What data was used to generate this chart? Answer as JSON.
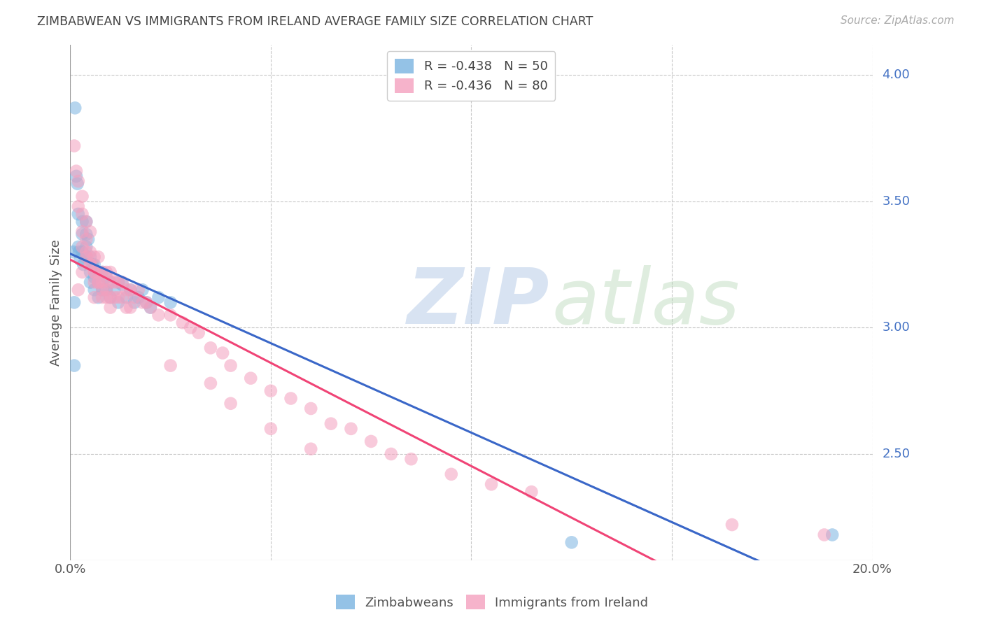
{
  "title": "ZIMBABWEAN VS IMMIGRANTS FROM IRELAND AVERAGE FAMILY SIZE CORRELATION CHART",
  "source": "Source: ZipAtlas.com",
  "ylabel": "Average Family Size",
  "yticks_right": [
    4.0,
    3.5,
    3.0,
    2.5
  ],
  "ytick_color": "#4472c4",
  "legend_top": [
    {
      "label": "R = -0.438   N = 50",
      "color": "#7aabdb"
    },
    {
      "label": "R = -0.436   N = 80",
      "color": "#ff99bb"
    }
  ],
  "legend_labels": [
    "Zimbabweans",
    "Immigrants from Ireland"
  ],
  "series1_color": "#7ab3e0",
  "series2_color": "#f4a0be",
  "line1_color": "#3a67c8",
  "line2_color": "#f04476",
  "background_color": "#ffffff",
  "grid_color": "#c8c8c8",
  "title_color": "#444444",
  "source_color": "#aaaaaa",
  "xmin": 0.0,
  "xmax": 0.2,
  "ymin": 2.08,
  "ymax": 4.12,
  "zim_x": [
    0.0008,
    0.0012,
    0.0015,
    0.0018,
    0.002,
    0.002,
    0.0022,
    0.0025,
    0.003,
    0.003,
    0.003,
    0.0033,
    0.004,
    0.004,
    0.004,
    0.004,
    0.0045,
    0.005,
    0.005,
    0.005,
    0.0055,
    0.006,
    0.006,
    0.006,
    0.007,
    0.007,
    0.007,
    0.008,
    0.008,
    0.009,
    0.009,
    0.01,
    0.01,
    0.011,
    0.012,
    0.012,
    0.013,
    0.014,
    0.015,
    0.016,
    0.017,
    0.018,
    0.019,
    0.02,
    0.022,
    0.025,
    0.001,
    0.001,
    0.125,
    0.19
  ],
  "zim_y": [
    3.3,
    3.87,
    3.6,
    3.57,
    3.32,
    3.45,
    3.3,
    3.27,
    3.42,
    3.37,
    3.3,
    3.25,
    3.42,
    3.37,
    3.32,
    3.28,
    3.35,
    3.28,
    3.22,
    3.18,
    3.25,
    3.25,
    3.2,
    3.15,
    3.22,
    3.18,
    3.12,
    3.22,
    3.15,
    3.2,
    3.15,
    3.18,
    3.12,
    3.15,
    3.18,
    3.1,
    3.17,
    3.12,
    3.15,
    3.1,
    3.12,
    3.15,
    3.1,
    3.08,
    3.12,
    3.1,
    3.1,
    2.85,
    2.15,
    2.18
  ],
  "ire_x": [
    0.001,
    0.0015,
    0.002,
    0.002,
    0.003,
    0.003,
    0.003,
    0.004,
    0.004,
    0.004,
    0.005,
    0.005,
    0.005,
    0.006,
    0.006,
    0.006,
    0.006,
    0.007,
    0.007,
    0.007,
    0.008,
    0.008,
    0.008,
    0.009,
    0.009,
    0.01,
    0.01,
    0.01,
    0.011,
    0.011,
    0.012,
    0.012,
    0.013,
    0.013,
    0.014,
    0.014,
    0.015,
    0.015,
    0.016,
    0.017,
    0.018,
    0.019,
    0.02,
    0.022,
    0.025,
    0.028,
    0.03,
    0.032,
    0.035,
    0.038,
    0.04,
    0.045,
    0.05,
    0.055,
    0.06,
    0.065,
    0.07,
    0.075,
    0.08,
    0.085,
    0.003,
    0.004,
    0.005,
    0.006,
    0.007,
    0.008,
    0.009,
    0.01,
    0.002,
    0.003,
    0.095,
    0.105,
    0.115,
    0.035,
    0.04,
    0.05,
    0.06,
    0.025,
    0.165,
    0.188
  ],
  "ire_y": [
    3.72,
    3.62,
    3.58,
    3.48,
    3.52,
    3.45,
    3.38,
    3.42,
    3.35,
    3.3,
    3.38,
    3.3,
    3.25,
    3.28,
    3.22,
    3.18,
    3.12,
    3.28,
    3.22,
    3.18,
    3.22,
    3.18,
    3.12,
    3.22,
    3.15,
    3.22,
    3.18,
    3.12,
    3.18,
    3.12,
    3.18,
    3.12,
    3.18,
    3.12,
    3.15,
    3.08,
    3.15,
    3.08,
    3.12,
    3.15,
    3.1,
    3.1,
    3.08,
    3.05,
    3.05,
    3.02,
    3.0,
    2.98,
    2.92,
    2.9,
    2.85,
    2.8,
    2.75,
    2.72,
    2.68,
    2.62,
    2.6,
    2.55,
    2.5,
    2.48,
    3.32,
    3.28,
    3.25,
    3.22,
    3.18,
    3.15,
    3.12,
    3.08,
    3.15,
    3.22,
    2.42,
    2.38,
    2.35,
    2.78,
    2.7,
    2.6,
    2.52,
    2.85,
    2.22,
    2.18
  ]
}
